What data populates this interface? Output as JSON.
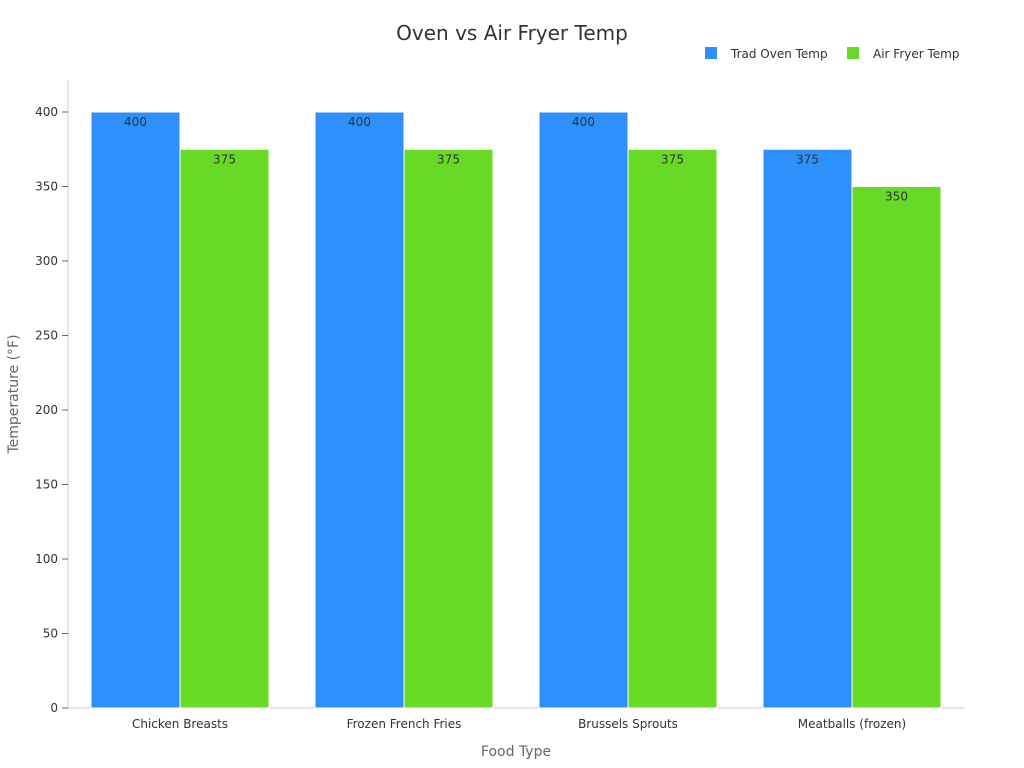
{
  "chart_data": {
    "type": "bar",
    "title": "Oven vs Air Fryer Temp",
    "xlabel": "Food Type",
    "ylabel": "Temperature (°F)",
    "categories": [
      "Chicken Breasts",
      "Frozen French Fries",
      "Brussels Sprouts",
      "Meatballs (frozen)"
    ],
    "series": [
      {
        "name": "Trad Oven Temp",
        "values": [
          400,
          400,
          400,
          375
        ],
        "color": "#2e90fa"
      },
      {
        "name": "Air Fryer Temp",
        "values": [
          375,
          375,
          375,
          350
        ],
        "color": "#66da26"
      }
    ],
    "ylim": [
      0,
      420
    ],
    "yticks": [
      0,
      50,
      100,
      150,
      200,
      250,
      300,
      350,
      400
    ],
    "grid": false,
    "legend_position": "top-right",
    "data_labels": true
  }
}
